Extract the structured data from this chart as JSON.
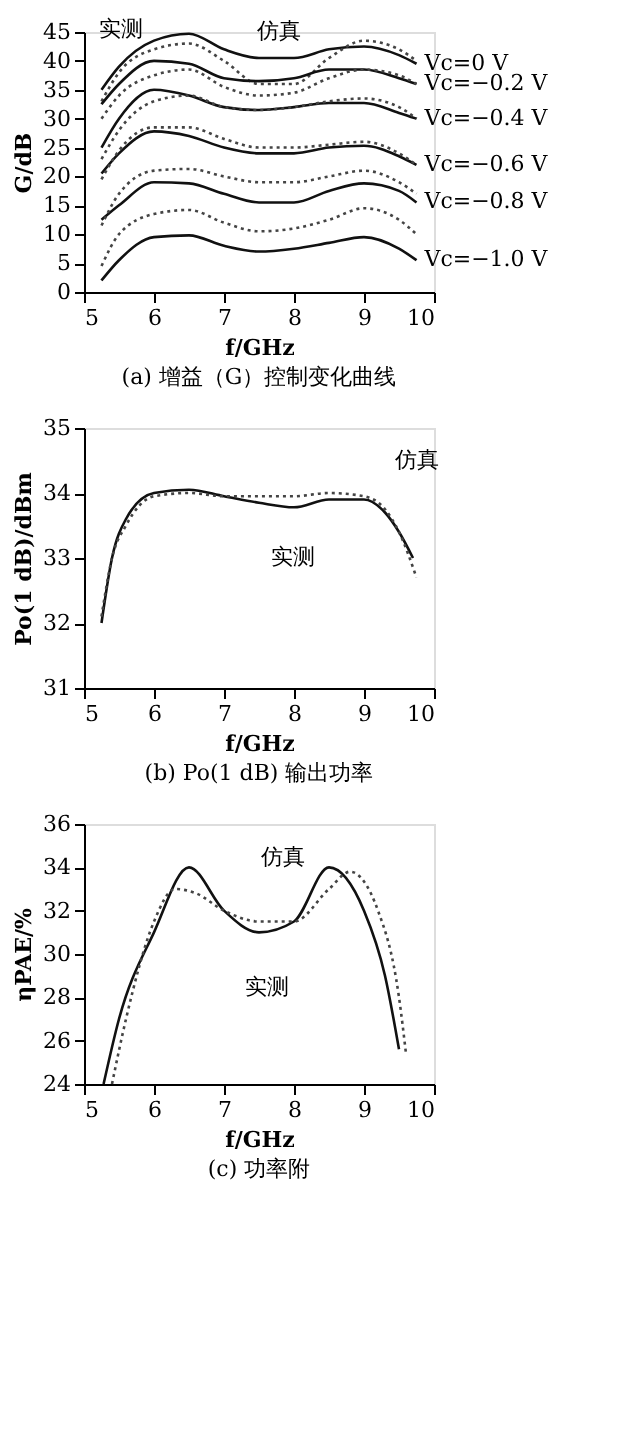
{
  "chart_data": [
    {
      "type": "line",
      "title": "(a) 增益（G）控制变化曲线",
      "xlabel": "f/GHz",
      "ylabel": "G/dB",
      "x": [
        5.25,
        5.5,
        6,
        6.5,
        7,
        7.5,
        8,
        8.5,
        9,
        9.5,
        9.75
      ],
      "xlim": [
        5,
        10
      ],
      "xticks": [
        5,
        6,
        7,
        8,
        9,
        10
      ],
      "ylim": [
        0,
        45
      ],
      "yticks": [
        0,
        5,
        10,
        15,
        20,
        25,
        30,
        35,
        40,
        45
      ],
      "grid": false,
      "series": [
        {
          "name": "Vc=0 V",
          "color": "#111111",
          "line_style": "solid",
          "values": [
            35,
            39,
            43.5,
            44.7,
            42,
            40.5,
            40.5,
            42,
            42.5,
            41,
            39.5
          ]
        },
        {
          "color": "#444444",
          "line_style": "dotted",
          "values": [
            33,
            38,
            42,
            43,
            40,
            36,
            36,
            40.5,
            43.5,
            42,
            40
          ]
        },
        {
          "name": "Vc=−0.2 V",
          "color": "#111111",
          "line_style": "solid",
          "values": [
            32.5,
            36,
            40,
            39.5,
            37,
            36.5,
            37,
            38.5,
            38.5,
            37,
            36
          ]
        },
        {
          "color": "#444444",
          "line_style": "dotted",
          "values": [
            30,
            34,
            37.5,
            38.5,
            35.5,
            34,
            34.5,
            37,
            38.5,
            37.5,
            36
          ]
        },
        {
          "name": "Vc=−0.4 V",
          "color": "#111111",
          "line_style": "solid",
          "values": [
            25,
            30,
            35,
            34,
            32,
            31.5,
            32,
            32.7,
            32.7,
            31,
            30
          ]
        },
        {
          "color": "#444444",
          "line_style": "dotted",
          "values": [
            23,
            28,
            33,
            34,
            32,
            31.5,
            32,
            33,
            33.5,
            32,
            30
          ]
        },
        {
          "name": "Vc=−0.6 V",
          "color": "#111111",
          "line_style": "solid",
          "values": [
            20.5,
            24,
            27.8,
            27,
            25,
            24,
            24,
            25,
            25.3,
            23.5,
            22
          ]
        },
        {
          "color": "#444444",
          "line_style": "dotted",
          "values": [
            19.5,
            24.5,
            28.5,
            28.5,
            26.5,
            25,
            25,
            25.5,
            26,
            24,
            22
          ]
        },
        {
          "name": "Vc=−0.8 V",
          "color": "#111111",
          "line_style": "solid",
          "values": [
            12.5,
            15,
            19,
            18.8,
            17,
            15.5,
            15.5,
            17.5,
            18.8,
            17.5,
            15.5
          ]
        },
        {
          "color": "#444444",
          "line_style": "dotted",
          "values": [
            11.5,
            17,
            21,
            21.3,
            20,
            19,
            19,
            20,
            21,
            19,
            17
          ]
        },
        {
          "name": "Vc=−1.0 V",
          "color": "#111111",
          "line_style": "solid",
          "values": [
            2,
            5.5,
            9.5,
            9.8,
            8,
            7,
            7.5,
            8.5,
            9.5,
            7.5,
            5.5
          ]
        },
        {
          "color": "#444444",
          "line_style": "dotted",
          "values": [
            4.5,
            10,
            13.5,
            14.2,
            12,
            10.5,
            11,
            12.5,
            14.5,
            12.5,
            10
          ]
        }
      ],
      "annotations": [
        {
          "text": "实测",
          "x": 6.5,
          "y": 44.7
        },
        {
          "text": "仿真",
          "x": 7.5,
          "y": 36
        }
      ]
    },
    {
      "type": "line",
      "title": "(b) Po(1 dB) 输出功率",
      "xlabel": "f/GHz",
      "ylabel": "Po(1 dB)/dBm",
      "xlim": [
        5,
        10
      ],
      "xticks": [
        5,
        6,
        7,
        8,
        9,
        10
      ],
      "ylim": [
        31,
        35
      ],
      "yticks": [
        31,
        32,
        33,
        34,
        35
      ],
      "grid": false,
      "series": [
        {
          "color": "#111111",
          "line_style": "solid",
          "x": [
            5.25,
            5.4,
            5.6,
            6,
            6.5,
            7,
            7.5,
            8,
            8.5,
            9,
            9.3,
            9.5,
            9.7
          ],
          "values": [
            32.0,
            33.0,
            33.6,
            34.0,
            34.05,
            33.95,
            33.85,
            33.78,
            33.9,
            33.9,
            33.7,
            33.4,
            33.0
          ]
        },
        {
          "color": "#444444",
          "line_style": "dotted",
          "x": [
            5.25,
            5.4,
            5.6,
            6,
            6.5,
            7,
            7.5,
            8,
            8.5,
            9,
            9.3,
            9.5,
            9.75
          ],
          "values": [
            32.1,
            33.0,
            33.5,
            33.95,
            34.0,
            33.95,
            33.95,
            33.95,
            34.0,
            33.95,
            33.75,
            33.4,
            32.7
          ]
        }
      ],
      "annotations": [
        {
          "text": "仿真",
          "x": 9.3,
          "y": 33.75
        },
        {
          "text": "实测",
          "x": 8.5,
          "y": 33.9
        }
      ]
    },
    {
      "type": "line",
      "title": "(c) 功率附",
      "xlabel": "f/GHz",
      "ylabel": "ηPAE/%",
      "xlim": [
        5,
        10
      ],
      "xticks": [
        5,
        6,
        7,
        8,
        9,
        10
      ],
      "ylim": [
        24,
        36
      ],
      "yticks": [
        24,
        26,
        28,
        30,
        32,
        34,
        36
      ],
      "grid": false,
      "series": [
        {
          "color": "#111111",
          "line_style": "solid",
          "x": [
            5.28,
            5.5,
            6,
            6.5,
            7,
            7.5,
            8,
            8.5,
            9,
            9.3,
            9.5
          ],
          "values": [
            24,
            27,
            31,
            34,
            32,
            31,
            31.5,
            34,
            32,
            29,
            25.6
          ]
        },
        {
          "color": "#444444",
          "line_style": "dotted",
          "x": [
            5.4,
            5.6,
            6,
            6.3,
            6.6,
            7,
            7.5,
            8,
            8.5,
            8.8,
            9.2,
            9.5,
            9.6
          ],
          "values": [
            24,
            27,
            31.5,
            33,
            32.8,
            32,
            31.5,
            31.5,
            33,
            33.8,
            32,
            28,
            25.4
          ]
        }
      ],
      "annotations": [
        {
          "text": "仿真",
          "x": 7.5,
          "y": 31.5
        },
        {
          "text": "实测",
          "x": 7.5,
          "y": 31
        }
      ]
    }
  ]
}
